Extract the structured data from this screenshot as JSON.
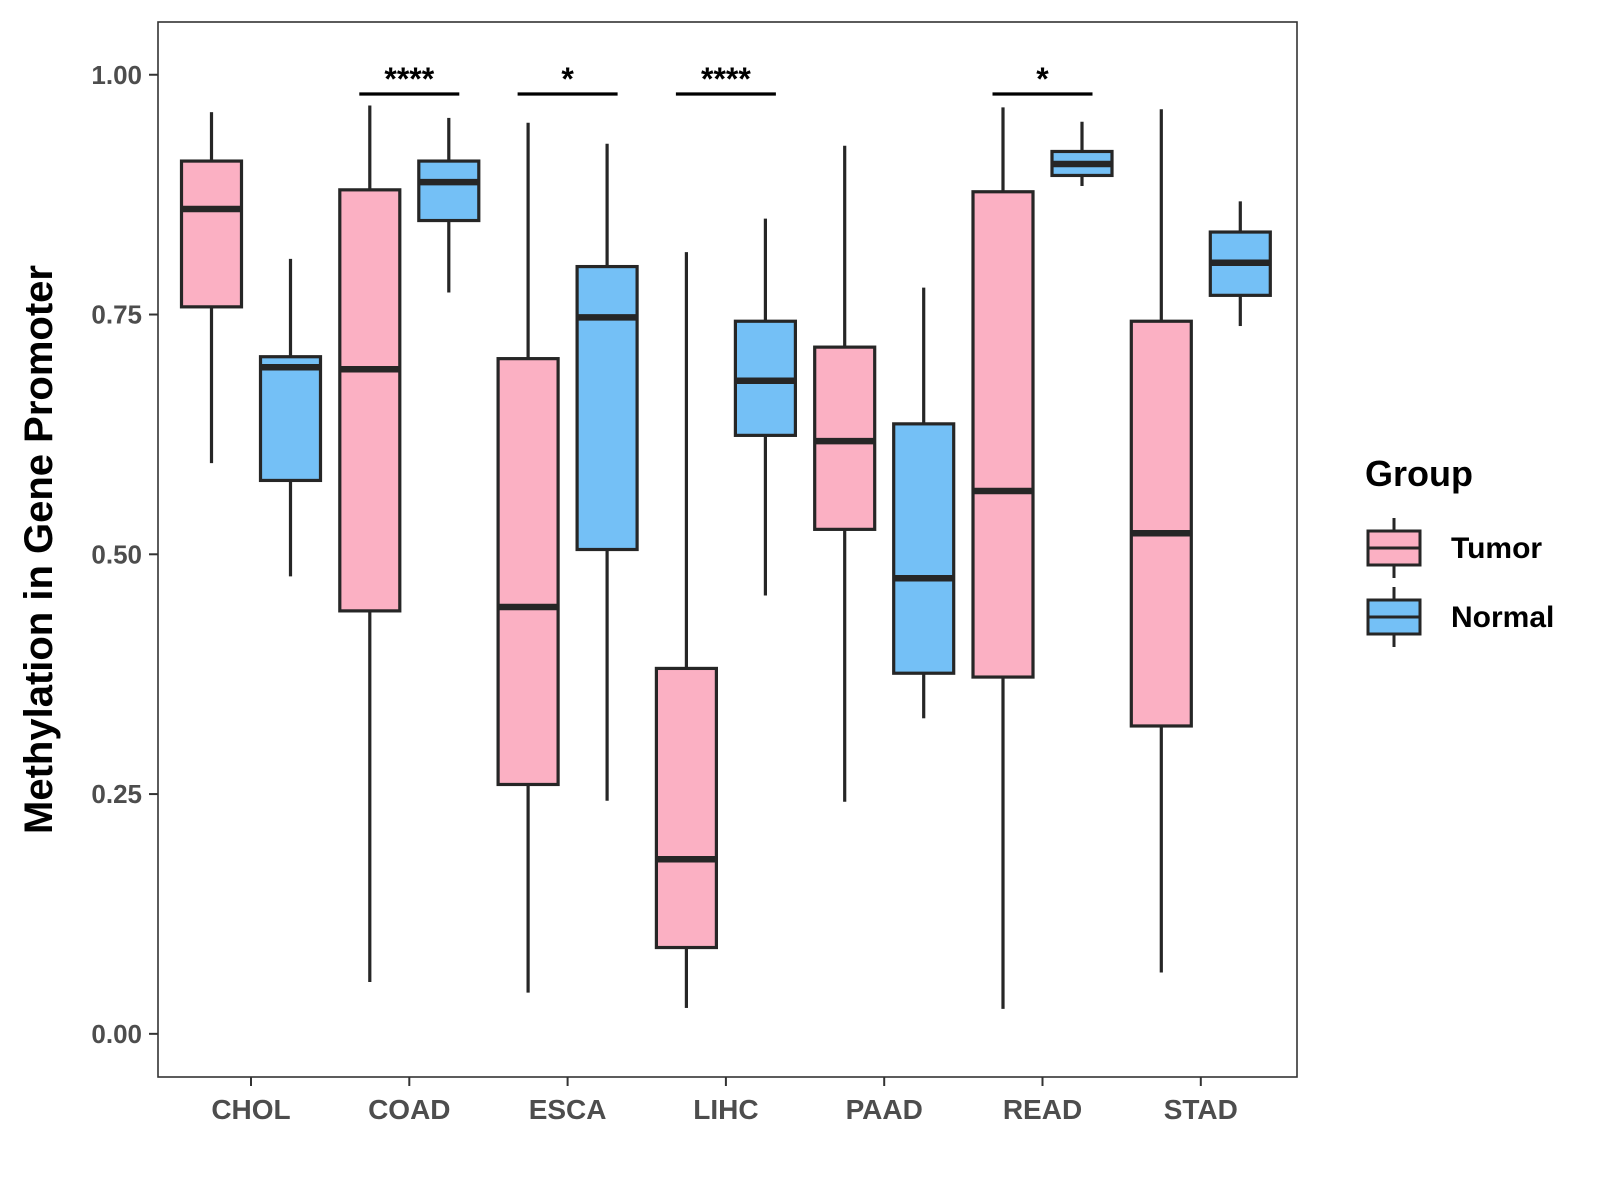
{
  "chart_data": {
    "type": "boxplot",
    "title": "",
    "xlabel": "",
    "ylabel": "Methylation in Gene Promoter",
    "ylim": [
      -0.045,
      1.055
    ],
    "yticks": [
      0.0,
      0.25,
      0.5,
      0.75,
      1.0
    ],
    "ytick_labels": [
      "0.00",
      "0.25",
      "0.50",
      "0.75",
      "1.00"
    ],
    "categories": [
      "CHOL",
      "COAD",
      "ESCA",
      "LIHC",
      "PAAD",
      "READ",
      "STAD"
    ],
    "legend": {
      "title": "Group",
      "position": "right",
      "entries": [
        {
          "name": "Tumor",
          "color": "#FBB0C3"
        },
        {
          "name": "Normal",
          "color": "#74C0F6"
        }
      ]
    },
    "series": [
      {
        "name": "Tumor",
        "color": "#FBB0C3",
        "boxes": [
          {
            "category": "CHOL",
            "min": 0.595,
            "q1": 0.758,
            "median": 0.86,
            "q3": 0.91,
            "max": 0.961
          },
          {
            "category": "COAD",
            "min": 0.054,
            "q1": 0.441,
            "median": 0.693,
            "q3": 0.88,
            "max": 0.968
          },
          {
            "category": "ESCA",
            "min": 0.043,
            "q1": 0.26,
            "median": 0.445,
            "q3": 0.704,
            "max": 0.95
          },
          {
            "category": "LIHC",
            "min": 0.027,
            "q1": 0.09,
            "median": 0.182,
            "q3": 0.381,
            "max": 0.815
          },
          {
            "category": "PAAD",
            "min": 0.242,
            "q1": 0.526,
            "median": 0.618,
            "q3": 0.716,
            "max": 0.926
          },
          {
            "category": "READ",
            "min": 0.026,
            "q1": 0.372,
            "median": 0.566,
            "q3": 0.878,
            "max": 0.966
          },
          {
            "category": "STAD",
            "min": 0.064,
            "q1": 0.321,
            "median": 0.522,
            "q3": 0.743,
            "max": 0.964
          }
        ]
      },
      {
        "name": "Normal",
        "color": "#74C0F6",
        "boxes": [
          {
            "category": "CHOL",
            "min": 0.477,
            "q1": 0.577,
            "median": 0.695,
            "q3": 0.706,
            "max": 0.808
          },
          {
            "category": "COAD",
            "min": 0.773,
            "q1": 0.848,
            "median": 0.888,
            "q3": 0.91,
            "max": 0.955
          },
          {
            "category": "ESCA",
            "min": 0.243,
            "q1": 0.505,
            "median": 0.747,
            "q3": 0.8,
            "max": 0.928
          },
          {
            "category": "LIHC",
            "min": 0.457,
            "q1": 0.624,
            "median": 0.681,
            "q3": 0.743,
            "max": 0.85
          },
          {
            "category": "PAAD",
            "min": 0.329,
            "q1": 0.376,
            "median": 0.475,
            "q3": 0.636,
            "max": 0.778
          },
          {
            "category": "READ",
            "min": 0.884,
            "q1": 0.895,
            "median": 0.907,
            "q3": 0.92,
            "max": 0.951
          },
          {
            "category": "STAD",
            "min": 0.738,
            "q1": 0.77,
            "median": 0.804,
            "q3": 0.836,
            "max": 0.868
          }
        ]
      }
    ],
    "significance": [
      {
        "category": "COAD",
        "label": "****"
      },
      {
        "category": "ESCA",
        "label": "*"
      },
      {
        "category": "LIHC",
        "label": "****"
      },
      {
        "category": "READ",
        "label": "*"
      }
    ],
    "grid": false
  }
}
